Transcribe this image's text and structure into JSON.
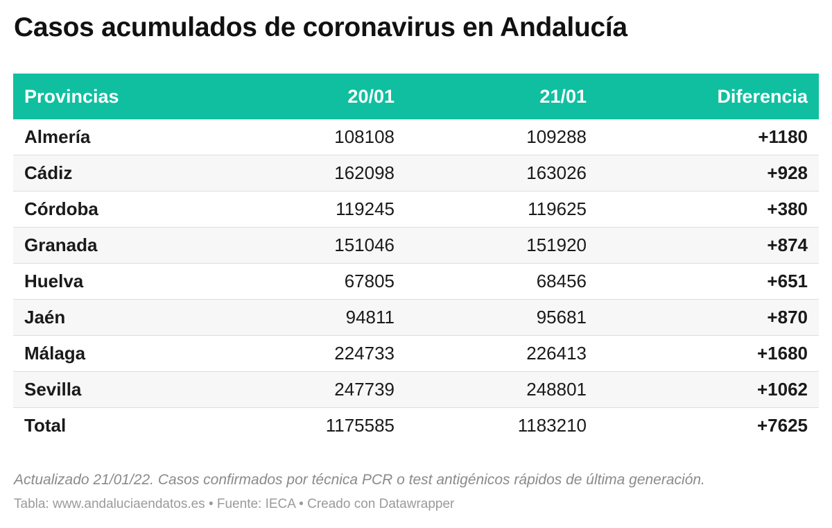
{
  "chart_data": {
    "type": "table",
    "title": "Casos acumulados de coronavirus en Andalucía",
    "columns": [
      "Provincias",
      "20/01",
      "21/01",
      "Diferencia"
    ],
    "rows": [
      [
        "Almería",
        "108108",
        "109288",
        "+1180"
      ],
      [
        "Cádiz",
        "162098",
        "163026",
        "+928"
      ],
      [
        "Córdoba",
        "119245",
        "119625",
        "+380"
      ],
      [
        "Granada",
        "151046",
        "151920",
        "+874"
      ],
      [
        "Huelva",
        "67805",
        "68456",
        "+651"
      ],
      [
        "Jaén",
        "94811",
        "95681",
        "+870"
      ],
      [
        "Málaga",
        "224733",
        "226413",
        "+1680"
      ],
      [
        "Sevilla",
        "247739",
        "248801",
        "+1062"
      ],
      [
        "Total",
        "1175585",
        "1183210",
        "+7625"
      ]
    ],
    "notes": "Actualizado 21/01/22. Casos confirmados por técnica PCR o test antigénicos rápidos de última generación.",
    "credits": "Tabla: www.andaluciaendatos.es • Fuente: IECA • Creado con Datawrapper"
  },
  "colors": {
    "header_bg": "#0fbfa0",
    "header_text": "#ffffff",
    "stripe": "#f7f7f7"
  }
}
